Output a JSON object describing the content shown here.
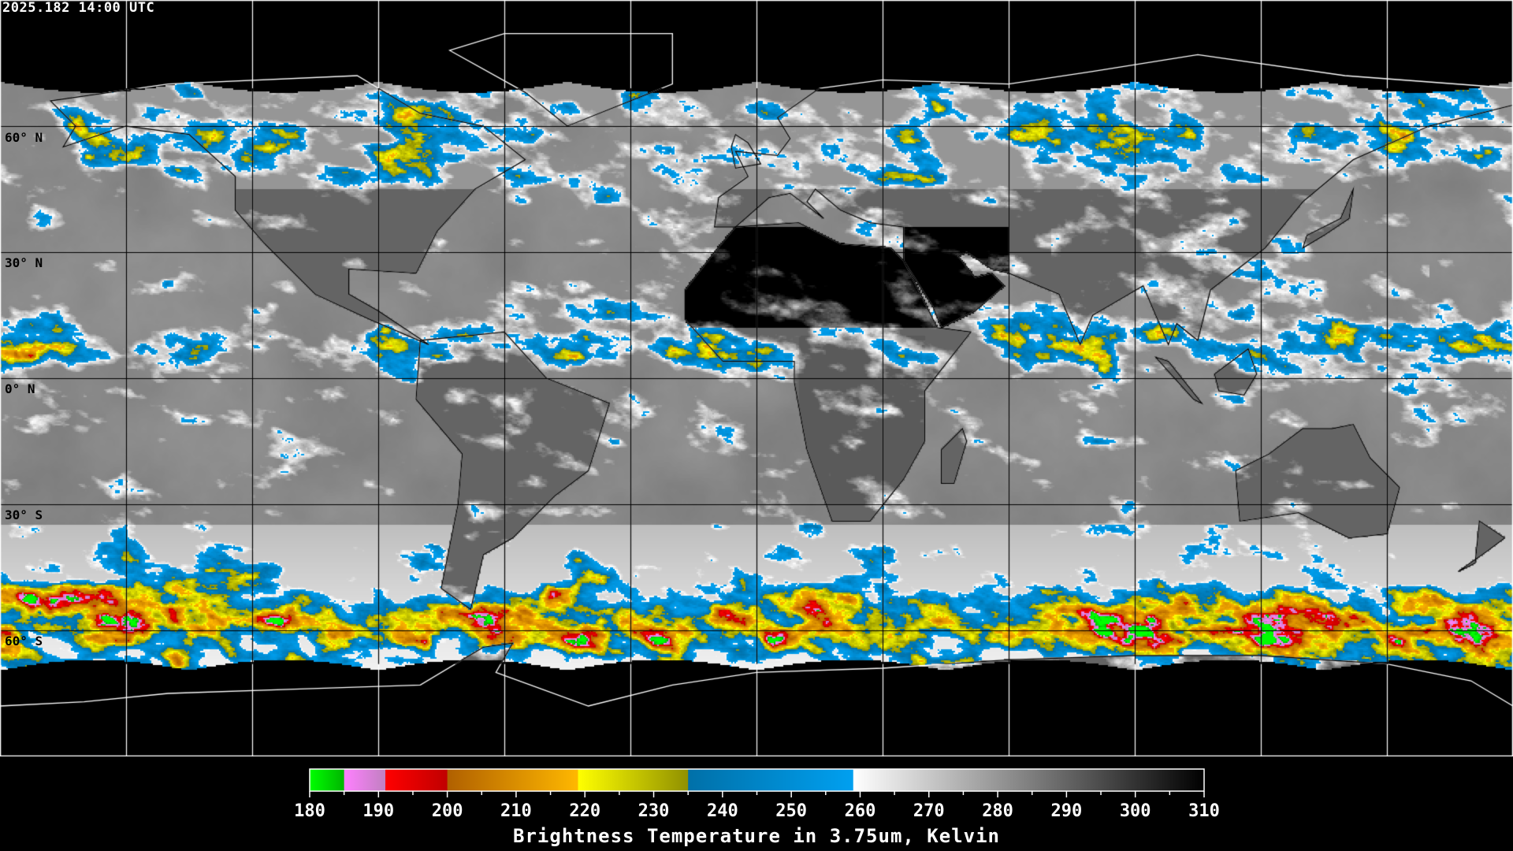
{
  "header": {
    "timestamp": "2025.182 14:00 UTC"
  },
  "map": {
    "projection": "equirectangular",
    "lon_range": [
      -180,
      180
    ],
    "lat_range": [
      -90,
      90
    ],
    "grid_spacing_deg": 30,
    "lat_labels": [
      "60° N",
      "30° N",
      "0° N",
      "30° S",
      "60° S"
    ],
    "coastline_color_in_data": "#000000",
    "coastline_color_outside": "#ffffff"
  },
  "colorbar": {
    "min": 180,
    "max": 310,
    "tick_labels": [
      "180",
      "190",
      "200",
      "210",
      "220",
      "230",
      "240",
      "250",
      "260",
      "270",
      "280",
      "290",
      "300",
      "310"
    ],
    "title": "Brightness Temperature in 3.75um, Kelvin",
    "segments": [
      {
        "from": 180,
        "to": 185,
        "start": "#00ff00",
        "end": "#00b400"
      },
      {
        "from": 185,
        "to": 191,
        "start": "#ff80ff",
        "end": "#c080c0"
      },
      {
        "from": 191,
        "to": 200,
        "start": "#ff0000",
        "end": "#c00000"
      },
      {
        "from": 200,
        "to": 219,
        "start": "#b06000",
        "end": "#ffb800"
      },
      {
        "from": 219,
        "to": 235,
        "start": "#ffff00",
        "end": "#909000"
      },
      {
        "from": 235,
        "to": 259,
        "start": "#0070a8",
        "end": "#00a0f0"
      },
      {
        "from": 259,
        "to": 310,
        "start": "#ffffff",
        "end": "#000000"
      }
    ]
  }
}
